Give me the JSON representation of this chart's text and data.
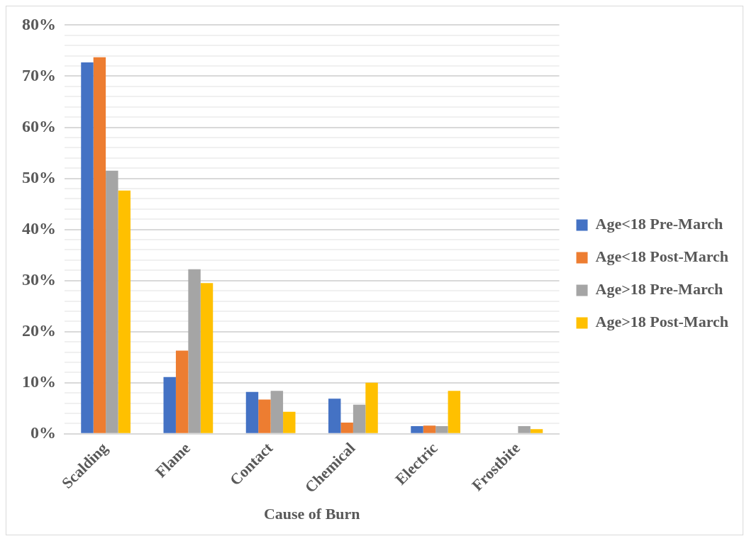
{
  "chart_data": {
    "type": "bar",
    "xlabel": "Cause of Burn",
    "categories": [
      "Scalding",
      "Flame",
      "Contact",
      "Chemical",
      "Electric",
      "Frostbite"
    ],
    "series": [
      {
        "name": "Age<18 Pre-March",
        "color": "#4472c4",
        "values": [
          72.7,
          11.1,
          8.2,
          6.9,
          1.5,
          0
        ]
      },
      {
        "name": "Age<18 Post-March",
        "color": "#ed7d31",
        "values": [
          73.7,
          16.3,
          6.7,
          2.2,
          1.6,
          0
        ]
      },
      {
        "name": "Age>18 Pre-March",
        "color": "#a5a5a5",
        "values": [
          51.5,
          32.2,
          8.4,
          5.7,
          1.5,
          1.5
        ]
      },
      {
        "name": "Age>18 Post-March",
        "color": "#ffc000",
        "values": [
          47.6,
          29.5,
          4.3,
          10.0,
          8.4,
          0.9
        ]
      }
    ],
    "ylim": [
      0,
      80
    ],
    "yticks": [
      {
        "value": 0,
        "label": "0%"
      },
      {
        "value": 2,
        "label": null
      },
      {
        "value": 4,
        "label": null
      },
      {
        "value": 6,
        "label": null
      },
      {
        "value": 8,
        "label": null
      },
      {
        "value": 10,
        "label": "10%"
      },
      {
        "value": 12,
        "label": null
      },
      {
        "value": 14,
        "label": null
      },
      {
        "value": 16,
        "label": null
      },
      {
        "value": 18,
        "label": null
      },
      {
        "value": 20,
        "label": "20%"
      },
      {
        "value": 22,
        "label": null
      },
      {
        "value": 24,
        "label": null
      },
      {
        "value": 26,
        "label": null
      },
      {
        "value": 28,
        "label": null
      },
      {
        "value": 30,
        "label": "30%"
      },
      {
        "value": 32,
        "label": null
      },
      {
        "value": 34,
        "label": null
      },
      {
        "value": 36,
        "label": null
      },
      {
        "value": 38,
        "label": null
      },
      {
        "value": 40,
        "label": "40%"
      },
      {
        "value": 42,
        "label": null
      },
      {
        "value": 44,
        "label": null
      },
      {
        "value": 46,
        "label": null
      },
      {
        "value": 48,
        "label": null
      },
      {
        "value": 50,
        "label": "50%"
      },
      {
        "value": 52,
        "label": null
      },
      {
        "value": 54,
        "label": null
      },
      {
        "value": 56,
        "label": null
      },
      {
        "value": 58,
        "label": null
      },
      {
        "value": 60,
        "label": "60%"
      },
      {
        "value": 62,
        "label": null
      },
      {
        "value": 64,
        "label": null
      },
      {
        "value": 66,
        "label": null
      },
      {
        "value": 68,
        "label": null
      },
      {
        "value": 70,
        "label": "70%"
      },
      {
        "value": 72,
        "label": null
      },
      {
        "value": 74,
        "label": null
      },
      {
        "value": 76,
        "label": null
      },
      {
        "value": 78,
        "label": null
      },
      {
        "value": 80,
        "label": "80%"
      }
    ],
    "grid": "y",
    "legend": "right"
  }
}
